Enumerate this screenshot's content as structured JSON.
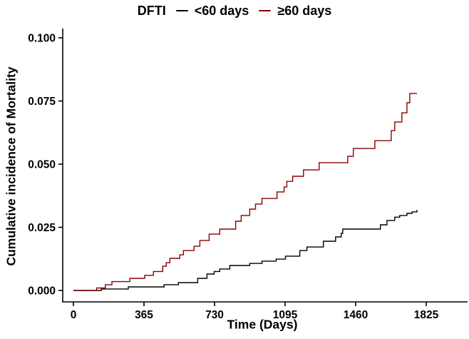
{
  "legend": {
    "title": "DFTI"
  },
  "chart_data": {
    "type": "line",
    "subtype": "step",
    "title": "",
    "xlabel": "Time (Days)",
    "ylabel": "Cumulative incidence of Mortality",
    "x_ticks": [
      0,
      365,
      730,
      1095,
      1460,
      1825
    ],
    "y_ticks": [
      "0.000",
      "0.025",
      "0.050",
      "0.075",
      "0.100"
    ],
    "xlim": [
      0,
      2040
    ],
    "ylim": [
      0,
      0.103
    ],
    "grid": false,
    "legend_position": "top",
    "legend_title": "DFTI",
    "axis_color": "#000000",
    "series": [
      {
        "name": "<60 days",
        "color": "#000000",
        "points": [
          [
            0,
            0
          ],
          [
            144,
            0.0006
          ],
          [
            284,
            0.0014
          ],
          [
            469,
            0.0023
          ],
          [
            543,
            0.0031
          ],
          [
            643,
            0.0048
          ],
          [
            691,
            0.0065
          ],
          [
            728,
            0.0075
          ],
          [
            757,
            0.0085
          ],
          [
            809,
            0.0099
          ],
          [
            912,
            0.0107
          ],
          [
            975,
            0.0116
          ],
          [
            1049,
            0.0124
          ],
          [
            1097,
            0.0136
          ],
          [
            1171,
            0.0158
          ],
          [
            1208,
            0.0172
          ],
          [
            1293,
            0.0195
          ],
          [
            1356,
            0.0212
          ],
          [
            1385,
            0.0226
          ],
          [
            1393,
            0.0243
          ],
          [
            1588,
            0.026
          ],
          [
            1622,
            0.0277
          ],
          [
            1662,
            0.029
          ],
          [
            1688,
            0.0297
          ],
          [
            1725,
            0.0305
          ],
          [
            1751,
            0.0311
          ],
          [
            1777,
            0.0319
          ]
        ]
      },
      {
        "name": "≥60 days",
        "color": "#8B0000",
        "points": [
          [
            0,
            0
          ],
          [
            120,
            0.001
          ],
          [
            165,
            0.0023
          ],
          [
            199,
            0.0035
          ],
          [
            292,
            0.0048
          ],
          [
            369,
            0.006
          ],
          [
            414,
            0.0075
          ],
          [
            462,
            0.0096
          ],
          [
            480,
            0.011
          ],
          [
            499,
            0.0127
          ],
          [
            550,
            0.0141
          ],
          [
            569,
            0.0158
          ],
          [
            624,
            0.0175
          ],
          [
            654,
            0.0198
          ],
          [
            702,
            0.0223
          ],
          [
            757,
            0.0243
          ],
          [
            839,
            0.0274
          ],
          [
            868,
            0.0297
          ],
          [
            912,
            0.0322
          ],
          [
            942,
            0.0342
          ],
          [
            975,
            0.0364
          ],
          [
            1053,
            0.039
          ],
          [
            1090,
            0.041
          ],
          [
            1104,
            0.0432
          ],
          [
            1134,
            0.0452
          ],
          [
            1190,
            0.0477
          ],
          [
            1271,
            0.0506
          ],
          [
            1419,
            0.0531
          ],
          [
            1448,
            0.0562
          ],
          [
            1559,
            0.0593
          ],
          [
            1644,
            0.0633
          ],
          [
            1662,
            0.0667
          ],
          [
            1699,
            0.0703
          ],
          [
            1725,
            0.0743
          ],
          [
            1740,
            0.078
          ],
          [
            1777,
            0.078
          ]
        ]
      }
    ]
  }
}
